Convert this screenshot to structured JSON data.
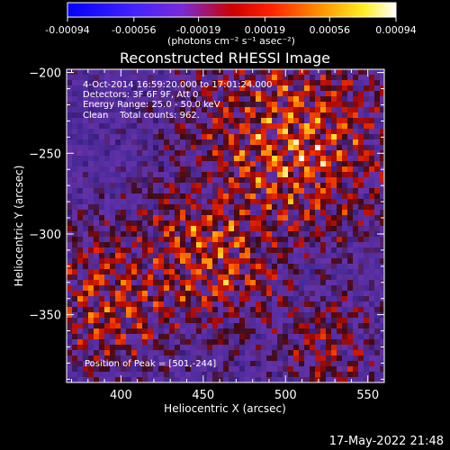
{
  "colorbar": {
    "tick_labels": [
      "-0.00094",
      "-0.00056",
      "-0.00019",
      "0.00019",
      "0.00056",
      "0.00094"
    ],
    "tick_values": [
      -0.00094,
      -0.00056,
      -0.00019,
      0.00019,
      0.00056,
      0.00094
    ],
    "range": [
      -0.00094,
      0.00094
    ],
    "units_label": "(photons cm⁻² s⁻¹ asec⁻²)",
    "colors": [
      "#0000ff",
      "#6633ff",
      "#ff0000",
      "#ff8000",
      "#ffff00",
      "#ffffff"
    ]
  },
  "chart_data": {
    "type": "heatmap",
    "title": "Reconstructed RHESSI Image",
    "xlabel": "Heliocentric X (arcsec)",
    "ylabel": "Heliocentric Y (arcsec)",
    "xlim": [
      367,
      560
    ],
    "ylim": [
      -392,
      -198
    ],
    "x_ticks": [
      400,
      450,
      500,
      550
    ],
    "y_ticks": [
      -200,
      -250,
      -300,
      -350
    ],
    "x_tick_labels": [
      "400",
      "450",
      "500",
      "550"
    ],
    "y_tick_labels": [
      "−200",
      "−250",
      "−300",
      "−350"
    ],
    "annotations": [
      "4-Oct-2014 16:59:20.000 to 17:01:24.000",
      "Detectors: 3F 6F 9F, Att 0",
      "Energy Range: 25.0 - 50.0 keV",
      "Clean    Total counts: 962.",
      "Position of Peak = [501,-244]"
    ],
    "peak": {
      "x": 501,
      "y": -244
    }
  },
  "footer": {
    "timestamp": "17-May-2022 21:48"
  }
}
